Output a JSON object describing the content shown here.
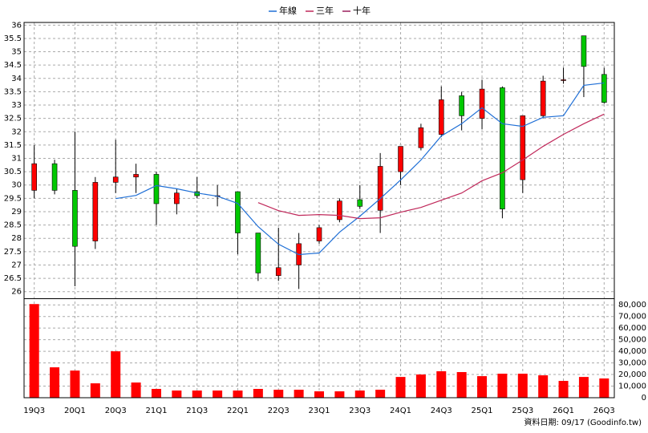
{
  "chart_data": [
    {
      "type": "candlestick",
      "categories": [
        "19Q3",
        null,
        "20Q1",
        null,
        "20Q3",
        null,
        "21Q1",
        null,
        "21Q3",
        null,
        "22Q1",
        null,
        "22Q3",
        null,
        "23Q1",
        null,
        "23Q3",
        null,
        "24Q1",
        null,
        "24Q3",
        null,
        "25Q1",
        null,
        "25Q3",
        null,
        "26Q1",
        null,
        "26Q3"
      ],
      "open": [
        29.8,
        30.8,
        29.8,
        27.9,
        30.1,
        30.3,
        30.4,
        29.3,
        29.75,
        29.6,
        29.75,
        28.2,
        26.6,
        27.0,
        27.9,
        28.7,
        29.45,
        29.05,
        30.5,
        31.4,
        31.9,
        33.35,
        32.5,
        33.65,
        30.2,
        32.6,
        33.95,
        35.6,
        34.15
      ],
      "high": [
        31.5,
        30.95,
        32.0,
        30.3,
        31.7,
        30.8,
        30.5,
        29.85,
        30.3,
        30.0,
        29.75,
        28.2,
        28.4,
        28.2,
        28.5,
        29.5,
        30.0,
        31.2,
        31.45,
        32.3,
        33.7,
        33.5,
        33.95,
        33.7,
        32.6,
        34.1,
        34.4,
        35.6,
        34.4
      ],
      "low": [
        29.5,
        29.65,
        26.2,
        27.6,
        29.7,
        29.7,
        28.5,
        28.9,
        29.5,
        29.2,
        27.4,
        26.4,
        26.4,
        26.1,
        27.8,
        28.6,
        29.1,
        28.2,
        30.0,
        31.3,
        31.8,
        32.05,
        32.1,
        28.75,
        29.7,
        32.5,
        33.8,
        33.3,
        33.05
      ],
      "close": [
        30.8,
        29.8,
        27.7,
        30.1,
        30.3,
        30.4,
        29.3,
        29.7,
        29.6,
        29.6,
        28.2,
        26.7,
        26.9,
        27.8,
        28.4,
        29.4,
        29.2,
        30.7,
        31.45,
        32.15,
        33.2,
        32.6,
        33.6,
        29.1,
        32.6,
        33.9,
        33.95,
        34.45,
        33.1
      ],
      "up_color": "#ff0000",
      "down_color": "#00c800",
      "series": [
        {
          "name": "年線",
          "color": "#1f6fd6",
          "values": [
            null,
            null,
            null,
            null,
            29.49,
            29.61,
            29.98,
            29.86,
            29.7,
            29.58,
            29.31,
            28.44,
            27.78,
            27.39,
            27.45,
            28.23,
            28.83,
            29.49,
            30.19,
            30.94,
            31.84,
            32.3,
            32.9,
            32.3,
            32.2,
            32.54,
            32.6,
            33.74,
            33.83
          ]
        },
        {
          "name": "三年",
          "color": "#c0285a",
          "values": [
            null,
            null,
            null,
            null,
            null,
            null,
            null,
            null,
            null,
            null,
            null,
            29.34,
            29.04,
            28.86,
            28.89,
            28.86,
            28.74,
            28.77,
            28.98,
            29.16,
            29.43,
            29.7,
            30.16,
            30.46,
            30.94,
            31.45,
            31.9,
            32.3,
            32.66
          ]
        },
        {
          "name": "十年",
          "color": "#9b1f5e",
          "values": [
            null,
            null,
            null,
            null,
            null,
            null,
            null,
            null,
            null,
            null,
            null,
            null,
            null,
            null,
            null,
            null,
            null,
            null,
            null,
            null,
            null,
            null,
            null,
            null,
            null,
            null,
            null,
            null,
            null
          ]
        }
      ],
      "ylim": [
        25.75,
        36.1
      ],
      "yticks": [
        26,
        26.5,
        27,
        27.5,
        28,
        28.5,
        29,
        29.5,
        30,
        30.5,
        31,
        31.5,
        32,
        32.5,
        33,
        33.5,
        34,
        34.5,
        35,
        35.5,
        36
      ],
      "grid": true
    },
    {
      "type": "bar",
      "values": [
        80700,
        26200,
        23400,
        12400,
        40000,
        13100,
        7600,
        6200,
        6200,
        6200,
        6200,
        7600,
        6900,
        6900,
        5500,
        5500,
        6200,
        6900,
        17900,
        20000,
        22800,
        22100,
        18600,
        20700,
        20700,
        19300,
        14500,
        17900,
        16600
      ],
      "color": "#ff0000",
      "ylim": [
        0,
        85000
      ],
      "yticks": [
        {
          "value": 0,
          "label": "0"
        },
        {
          "value": 10000,
          "label": "10,000"
        },
        {
          "value": 20000,
          "label": "20,000"
        },
        {
          "value": 30000,
          "label": "30,000"
        },
        {
          "value": 40000,
          "label": "40,000"
        },
        {
          "value": 50000,
          "label": "50,000"
        },
        {
          "value": 60000,
          "label": "60,000"
        },
        {
          "value": 70000,
          "label": "70,000"
        },
        {
          "value": 80000,
          "label": "80,000"
        }
      ],
      "grid": true,
      "source": "資料日期: 09/17  (Goodinfo.tw)"
    }
  ]
}
